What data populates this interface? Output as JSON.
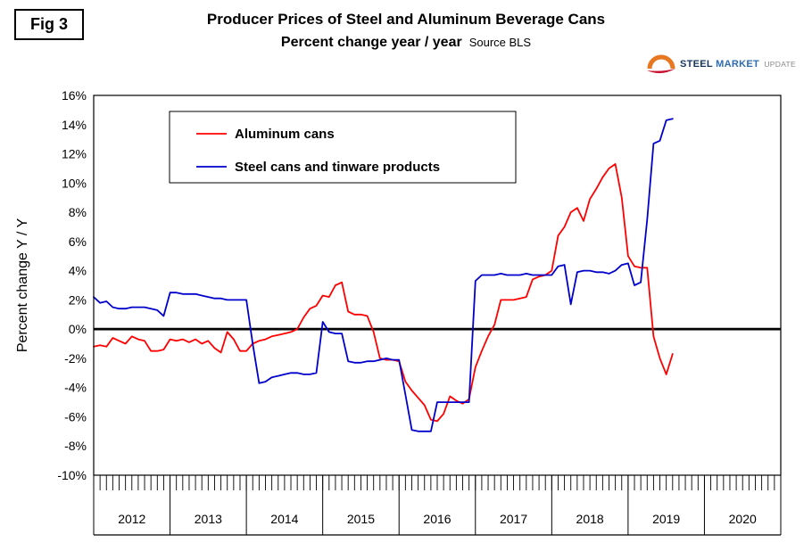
{
  "figure_label": "Fig 3",
  "header": {
    "title": "Producer Prices of Steel and Aluminum Beverage Cans",
    "subtitle": "Percent change year / year",
    "source": "Source BLS"
  },
  "logo": {
    "steel": "STEEL",
    "market": "MARKET",
    "update": "UPDATE"
  },
  "y_axis_label": "Percent change Y / Y",
  "chart_data": {
    "type": "line",
    "title": "Producer Prices of Steel and Aluminum Beverage Cans",
    "subtitle": "Percent change year / year",
    "source": "Source BLS",
    "ylabel": "Percent change Y / Y",
    "ylim": [
      -10,
      16
    ],
    "ytick_step": 2,
    "ytick_format": "percent",
    "grid": false,
    "zero_line": true,
    "legend_position": "top-left-inside",
    "x_years": [
      2012,
      2013,
      2014,
      2015,
      2016,
      2017,
      2018,
      2019,
      2020
    ],
    "x_start": "2012-01",
    "x_frequency": "monthly",
    "series": [
      {
        "name": "Aluminum cans",
        "color": "#ff0000",
        "values": [
          -1.2,
          -1.1,
          -1.2,
          -0.6,
          -0.8,
          -1.0,
          -0.5,
          -0.7,
          -0.8,
          -1.5,
          -1.5,
          -1.4,
          -0.7,
          -0.8,
          -0.7,
          -0.9,
          -0.7,
          -1.0,
          -0.8,
          -1.3,
          -1.6,
          -0.2,
          -0.7,
          -1.5,
          -1.5,
          -1.0,
          -0.8,
          -0.7,
          -0.5,
          -0.4,
          -0.3,
          -0.2,
          0.0,
          0.8,
          1.4,
          1.6,
          2.3,
          2.2,
          3.0,
          3.2,
          1.2,
          1.0,
          1.0,
          0.9,
          -0.2,
          -2.0,
          -2.1,
          -2.1,
          -2.2,
          -3.6,
          -4.2,
          -4.7,
          -5.2,
          -6.2,
          -6.3,
          -5.8,
          -4.6,
          -4.9,
          -5.1,
          -4.8,
          -2.6,
          -1.5,
          -0.5,
          0.3,
          2.0,
          2.0,
          2.0,
          2.1,
          2.2,
          3.4,
          3.6,
          3.7,
          4.0,
          6.4,
          7.0,
          8.0,
          8.3,
          7.4,
          8.9,
          9.6,
          10.4,
          11.0,
          11.3,
          9.0,
          5.0,
          4.3,
          4.2,
          4.2,
          -0.5,
          -2.0,
          -3.1,
          -1.7
        ]
      },
      {
        "name": "Steel cans and tinware products",
        "color": "#0000cc",
        "values": [
          2.2,
          1.8,
          1.9,
          1.5,
          1.4,
          1.4,
          1.5,
          1.5,
          1.5,
          1.4,
          1.3,
          0.9,
          2.5,
          2.5,
          2.4,
          2.4,
          2.4,
          2.3,
          2.2,
          2.1,
          2.1,
          2.0,
          2.0,
          2.0,
          2.0,
          -1.0,
          -3.7,
          -3.6,
          -3.3,
          -3.2,
          -3.1,
          -3.0,
          -3.0,
          -3.1,
          -3.1,
          -3.0,
          0.5,
          -0.2,
          -0.3,
          -0.3,
          -2.2,
          -2.3,
          -2.3,
          -2.2,
          -2.2,
          -2.1,
          -2.0,
          -2.1,
          -2.1,
          -4.5,
          -6.9,
          -7.0,
          -7.0,
          -7.0,
          -5.0,
          -5.0,
          -5.0,
          -5.0,
          -5.0,
          -5.0,
          3.3,
          3.7,
          3.7,
          3.7,
          3.8,
          3.7,
          3.7,
          3.7,
          3.8,
          3.7,
          3.7,
          3.7,
          3.7,
          4.3,
          4.4,
          1.7,
          3.9,
          4.0,
          4.0,
          3.9,
          3.9,
          3.8,
          4.0,
          4.4,
          4.5,
          3.0,
          3.2,
          7.5,
          12.7,
          12.9,
          14.3,
          14.4
        ]
      }
    ]
  }
}
